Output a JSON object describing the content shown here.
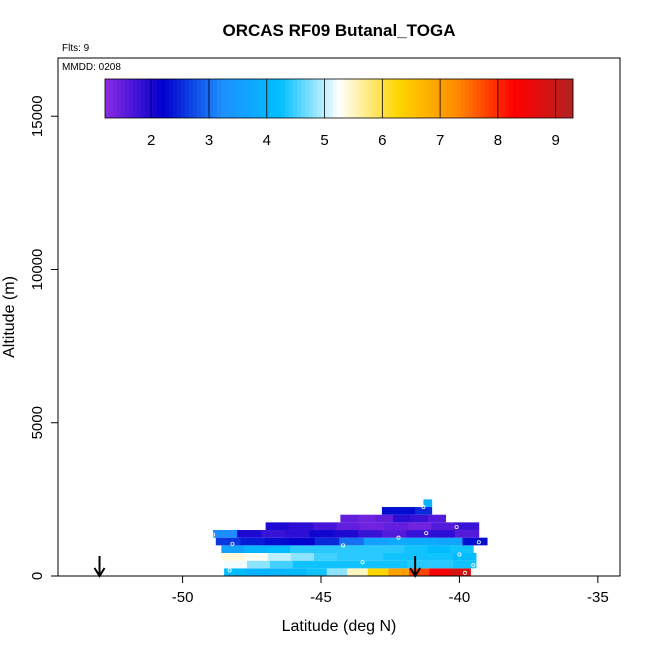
{
  "chart_data": {
    "type": "heatmap",
    "title": "ORCAS RF09 Butanal_TOGA",
    "flights_label": "Flts: 9",
    "date_label": "MMDD: 0208",
    "xlabel": "Latitude (deg N)",
    "ylabel": "Altitude (m)",
    "xlim": [
      -54.5,
      -34.2
    ],
    "ylim": [
      0,
      16900
    ],
    "x_ticks": [
      "-50",
      "-45",
      "-40",
      "-35"
    ],
    "x_tick_values": [
      -50,
      -45,
      -40,
      -35
    ],
    "y_ticks": [
      "0",
      "5000",
      "10000",
      "15000"
    ],
    "y_tick_values": [
      0,
      5000,
      10000,
      15000
    ],
    "colorbar": {
      "range": [
        1.2,
        9.3
      ],
      "tick_labels": [
        "2",
        "3",
        "4",
        "5",
        "6",
        "7",
        "8",
        "9"
      ],
      "tick_values": [
        2,
        3,
        4,
        5,
        6,
        7,
        8,
        9
      ],
      "colors": [
        "#8a2be2",
        "#0000cd",
        "#1e90ff",
        "#00bfff",
        "#ffffff",
        "#ffd700",
        "#ff8c00",
        "#ff0000",
        "#b22222"
      ]
    },
    "arrows_latitude": [
      -53.0,
      -41.6
    ],
    "grid": false,
    "legend": "top (colorbar)",
    "cells": [
      {
        "x0": -48.5,
        "x1": -39.6,
        "y0": 0,
        "y1": 250,
        "values": [
          4.2,
          4.0,
          4.0,
          4.1,
          4.3,
          4.8,
          5.5,
          6.3,
          7.0,
          7.8,
          8.4,
          8.8
        ]
      },
      {
        "x0": -48.5,
        "x1": -39.4,
        "y0": 250,
        "y1": 500,
        "values": [
          5.2,
          4.8,
          4.5,
          4.3,
          4.3,
          4.3,
          4.3,
          4.3,
          4.4,
          4.4,
          4.3
        ]
      },
      {
        "x0": -48.6,
        "x1": -39.4,
        "y0": 500,
        "y1": 750,
        "values": [
          5.4,
          5.3,
          5.0,
          4.8,
          4.5,
          4.4,
          4.4,
          4.3,
          4.3,
          4.3,
          4.2
        ]
      },
      {
        "x0": -48.6,
        "x1": -39.5,
        "y0": 750,
        "y1": 1000,
        "values": [
          3.6,
          4.0,
          4.2,
          4.4,
          4.4,
          4.4,
          4.4,
          4.4,
          4.3,
          4.2,
          4.3
        ]
      },
      {
        "x0": -48.8,
        "x1": -39.0,
        "y0": 1000,
        "y1": 1250,
        "values": [
          2.6,
          2.4,
          2.3,
          2.2,
          2.5,
          3.0,
          3.6,
          3.8,
          3.8,
          3.7,
          2.3
        ]
      },
      {
        "x0": -48.9,
        "x1": -39.3,
        "y0": 1250,
        "y1": 1500,
        "values": [
          3.2,
          2.0,
          1.8,
          1.9,
          2.1,
          2.0,
          1.8,
          1.6,
          1.8,
          1.9,
          1.6
        ]
      },
      {
        "x0": -47.0,
        "x1": -39.3,
        "y0": 1500,
        "y1": 1750,
        "values": [
          2.0,
          1.9,
          1.7,
          1.5,
          1.4,
          1.5,
          1.4,
          1.6,
          1.8
        ]
      },
      {
        "x0": -44.3,
        "x1": -40.5,
        "y0": 1750,
        "y1": 2000,
        "values": [
          1.5,
          1.4,
          1.5,
          1.9,
          1.8,
          1.6
        ]
      },
      {
        "x0": -42.8,
        "x1": -41.0,
        "y0": 2000,
        "y1": 2250,
        "values": [
          2.3,
          2.3,
          2.5
        ]
      },
      {
        "x0": -41.3,
        "x1": -41.0,
        "y0": 2250,
        "y1": 2500,
        "values": [
          4.0
        ]
      }
    ],
    "sample_points": [
      {
        "x": -48.3,
        "y": 180
      },
      {
        "x": -48.2,
        "y": 1050
      },
      {
        "x": -48.9,
        "y": 1350
      },
      {
        "x": -44.4,
        "y": 1950
      },
      {
        "x": -44.2,
        "y": 1000
      },
      {
        "x": -43.5,
        "y": 450
      },
      {
        "x": -42.2,
        "y": 1250
      },
      {
        "x": -41.2,
        "y": 1400
      },
      {
        "x": -41.3,
        "y": 2250
      },
      {
        "x": -40.1,
        "y": 1600
      },
      {
        "x": -40.0,
        "y": 700
      },
      {
        "x": -39.3,
        "y": 1100
      },
      {
        "x": -39.5,
        "y": 350
      },
      {
        "x": -39.8,
        "y": 100
      }
    ]
  }
}
